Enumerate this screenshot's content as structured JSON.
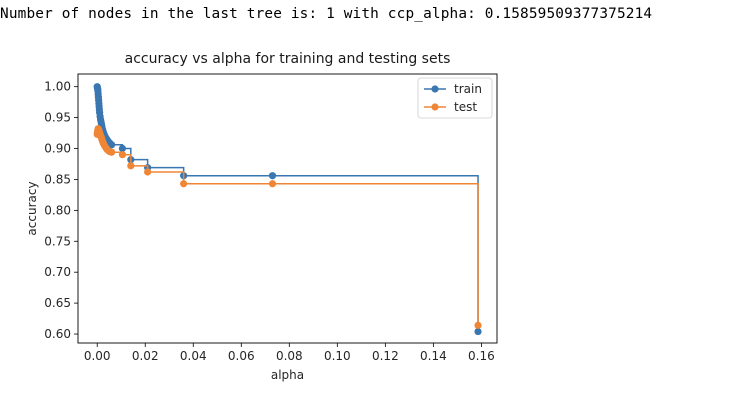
{
  "output": {
    "text": "Number of nodes in the last tree is: 1 with ccp_alpha: 0.15859509377375214"
  },
  "colors": {
    "train": "#3a76af",
    "test": "#ef8636"
  },
  "chart_data": {
    "type": "line",
    "title": "accuracy vs alpha for training and testing sets",
    "xlabel": "alpha",
    "ylabel": "accuracy",
    "xlim": [
      -0.008,
      0.1665
    ],
    "ylim": [
      0.5855,
      1.0205
    ],
    "xticks": [
      0.0,
      0.02,
      0.04,
      0.06,
      0.08,
      0.1,
      0.12,
      0.14,
      0.16
    ],
    "xtick_labels": [
      "0.00",
      "0.02",
      "0.04",
      "0.06",
      "0.08",
      "0.10",
      "0.12",
      "0.14",
      "0.16"
    ],
    "yticks": [
      0.6,
      0.65,
      0.7,
      0.75,
      0.8,
      0.85,
      0.9,
      0.95,
      1.0
    ],
    "ytick_labels": [
      "0.60",
      "0.65",
      "0.70",
      "0.75",
      "0.80",
      "0.85",
      "0.90",
      "0.95",
      "1.00"
    ],
    "drawstyle": "steps-post",
    "marker": "o",
    "legend": "top-right",
    "grid": false,
    "series": [
      {
        "name": "train",
        "color_key": "train",
        "x": [
          0.0,
          0.0001,
          0.0002,
          0.0003,
          0.0004,
          0.0005,
          0.0006,
          0.0007,
          0.0008,
          0.0009,
          0.001,
          0.0012,
          0.0014,
          0.0016,
          0.0018,
          0.002,
          0.0023,
          0.0026,
          0.003,
          0.0035,
          0.004,
          0.0045,
          0.0052,
          0.006,
          0.0105,
          0.014,
          0.021,
          0.036,
          0.073,
          0.1586
        ],
        "y": [
          1.0,
          0.998,
          0.996,
          0.993,
          0.988,
          0.983,
          0.978,
          0.973,
          0.968,
          0.963,
          0.958,
          0.952,
          0.947,
          0.943,
          0.939,
          0.935,
          0.93,
          0.926,
          0.922,
          0.918,
          0.915,
          0.912,
          0.909,
          0.906,
          0.9,
          0.882,
          0.869,
          0.856,
          0.856,
          0.604
        ]
      },
      {
        "name": "test",
        "color_key": "test",
        "x": [
          0.0,
          0.0001,
          0.0002,
          0.0003,
          0.0004,
          0.0005,
          0.0006,
          0.0007,
          0.0008,
          0.0009,
          0.001,
          0.0012,
          0.0014,
          0.0016,
          0.0018,
          0.002,
          0.0023,
          0.0026,
          0.003,
          0.0035,
          0.004,
          0.0045,
          0.0052,
          0.006,
          0.0105,
          0.014,
          0.021,
          0.036,
          0.073,
          0.1586
        ],
        "y": [
          0.923,
          0.925,
          0.928,
          0.93,
          0.932,
          0.931,
          0.93,
          0.929,
          0.928,
          0.926,
          0.925,
          0.923,
          0.921,
          0.919,
          0.917,
          0.914,
          0.911,
          0.908,
          0.905,
          0.902,
          0.899,
          0.897,
          0.895,
          0.894,
          0.89,
          0.872,
          0.862,
          0.843,
          0.843,
          0.614
        ]
      }
    ]
  }
}
